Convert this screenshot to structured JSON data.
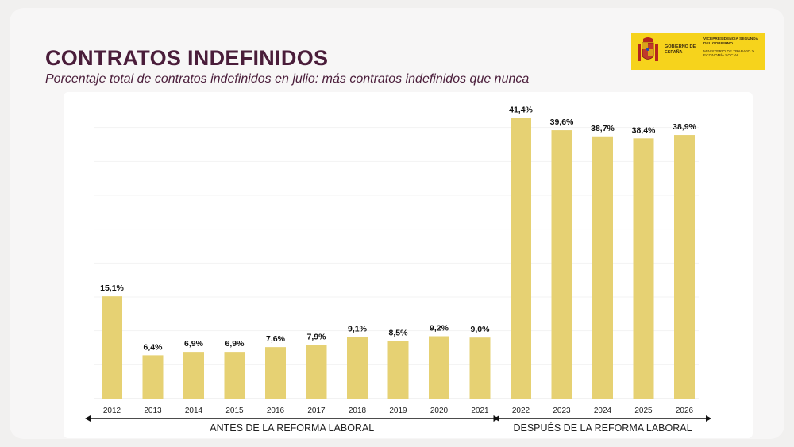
{
  "header": {
    "title": "CONTRATOS INDEFINIDOS",
    "subtitle": "Porcentaje total de contratos indefinidos en julio: más contratos indefinidos que nunca"
  },
  "logo": {
    "gobierno": "GOBIERNO DE ESPAÑA",
    "vicepresidencia": "VICEPRESIDENCIA SEGUNDA DEL GOBIERNO",
    "ministerio": "MINISTERIO DE TRABAJO Y ECONOMÍA SOCIAL",
    "color": "#f6d31c"
  },
  "chart_data": {
    "type": "bar",
    "categories": [
      "2012",
      "2013",
      "2014",
      "2015",
      "2016",
      "2017",
      "2018",
      "2019",
      "2020",
      "2021",
      "2022",
      "2023",
      "2024",
      "2025",
      "2026"
    ],
    "values": [
      15.1,
      6.4,
      6.9,
      6.9,
      7.6,
      7.9,
      9.1,
      8.5,
      9.2,
      9.0,
      41.4,
      39.6,
      38.7,
      38.4,
      38.9
    ],
    "data_labels": [
      "15,1%",
      "6,4%",
      "6,9%",
      "6,9%",
      "7,6%",
      "7,9%",
      "9,1%",
      "8,5%",
      "9,2%",
      "9,0%",
      "41,4%",
      "39,6%",
      "38,7%",
      "38,4%",
      "38,9%"
    ],
    "bar_color": "#e6d173",
    "ylim": [
      0,
      45
    ],
    "grid": true,
    "periods": [
      {
        "label": "ANTES DE LA REFORMA LABORAL",
        "from": "2012",
        "to": "2021"
      },
      {
        "label": "DESPUÉS DE LA REFORMA LABORAL",
        "from": "2022",
        "to": "2026"
      }
    ]
  }
}
